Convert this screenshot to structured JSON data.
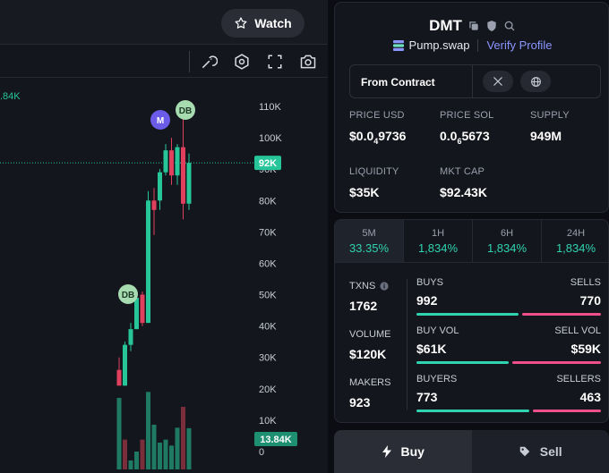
{
  "header": {
    "watch_label": "Watch"
  },
  "chart": {
    "y_ticks": [
      "110K",
      "100K",
      "90K",
      "80K",
      "70K",
      "60K",
      "50K",
      "40K",
      "30K",
      "20K",
      "10K",
      "0"
    ],
    "price_tag": "92K",
    "volume_tag": "13.84K",
    "left_volume_label": ".84K",
    "markers": [
      "M",
      "DB",
      "DB"
    ],
    "colors": {
      "up": "#26c59a",
      "down": "#e0405e",
      "up_vol": "#1f7a63",
      "down_vol": "#7a2e3a"
    }
  },
  "chart_data": {
    "type": "candlestick",
    "ylim": [
      0,
      115000
    ],
    "candles": [
      {
        "o": 26000,
        "h": 30000,
        "l": 21000,
        "c": 21000
      },
      {
        "o": 21000,
        "h": 35000,
        "l": 21000,
        "c": 34000
      },
      {
        "o": 34000,
        "h": 41000,
        "l": 32000,
        "c": 39000
      },
      {
        "o": 39000,
        "h": 50000,
        "l": 39000,
        "c": 49000
      },
      {
        "o": 50000,
        "h": 51000,
        "l": 40000,
        "c": 41000
      },
      {
        "o": 41000,
        "h": 83000,
        "l": 41000,
        "c": 80000
      },
      {
        "o": 80000,
        "h": 84000,
        "l": 69000,
        "c": 77000
      },
      {
        "o": 80000,
        "h": 90000,
        "l": 77000,
        "c": 89000
      },
      {
        "o": 89000,
        "h": 98000,
        "l": 88000,
        "c": 96000
      },
      {
        "o": 96000,
        "h": 100000,
        "l": 85000,
        "c": 88000
      },
      {
        "o": 88000,
        "h": 98000,
        "l": 85000,
        "c": 97000
      },
      {
        "o": 97000,
        "h": 106000,
        "l": 74000,
        "c": 79000
      },
      {
        "o": 79000,
        "h": 95000,
        "l": 77000,
        "c": 92000
      }
    ],
    "volumes": [
      {
        "v": 24000,
        "up": true
      },
      {
        "v": 10000,
        "up": false
      },
      {
        "v": 3000,
        "up": true
      },
      {
        "v": 6000,
        "up": true
      },
      {
        "v": 10000,
        "up": false
      },
      {
        "v": 26000,
        "up": true
      },
      {
        "v": 15000,
        "up": true
      },
      {
        "v": 9000,
        "up": true
      },
      {
        "v": 10000,
        "up": true
      },
      {
        "v": 8000,
        "up": true
      },
      {
        "v": 14000,
        "up": true
      },
      {
        "v": 21000,
        "up": false
      },
      {
        "v": 13840,
        "up": true
      }
    ]
  },
  "token": {
    "name": "DMT",
    "dex": "Pump.swap",
    "verify": "Verify Profile",
    "contract_label": "From Contract"
  },
  "stats": {
    "price_usd_label": "PRICE USD",
    "price_usd_pre": "$0.0",
    "price_usd_sub": "4",
    "price_usd_post": "9736",
    "price_sol_label": "PRICE SOL",
    "price_sol_pre": "0.0",
    "price_sol_sub": "6",
    "price_sol_post": "5673",
    "supply_label": "SUPPLY",
    "supply_value": "949M",
    "liquidity_label": "LIQUIDITY",
    "liquidity_value": "$35K",
    "mktcap_label": "MKT CAP",
    "mktcap_value": "$92.43K"
  },
  "timeframes": [
    {
      "label": "5M",
      "value": "33.35%"
    },
    {
      "label": "1H",
      "value": "1,834%"
    },
    {
      "label": "6H",
      "value": "1,834%"
    },
    {
      "label": "24H",
      "value": "1,834%"
    }
  ],
  "txns": {
    "txns_label": "TXNS",
    "txns_value": "1762",
    "volume_label": "VOLUME",
    "volume_value": "$120K",
    "makers_label": "MAKERS",
    "makers_value": "923",
    "buys_label": "BUYS",
    "buys_value": "992",
    "sells_label": "SELLS",
    "sells_value": "770",
    "buyvol_label": "BUY VOL",
    "buyvol_value": "$61K",
    "sellvol_label": "SELL VOL",
    "sellvol_value": "$59K",
    "buyers_label": "BUYERS",
    "buyers_value": "773",
    "sellers_label": "SELLERS",
    "sellers_value": "463"
  },
  "trade": {
    "buy_label": "Buy",
    "sell_label": "Sell"
  }
}
